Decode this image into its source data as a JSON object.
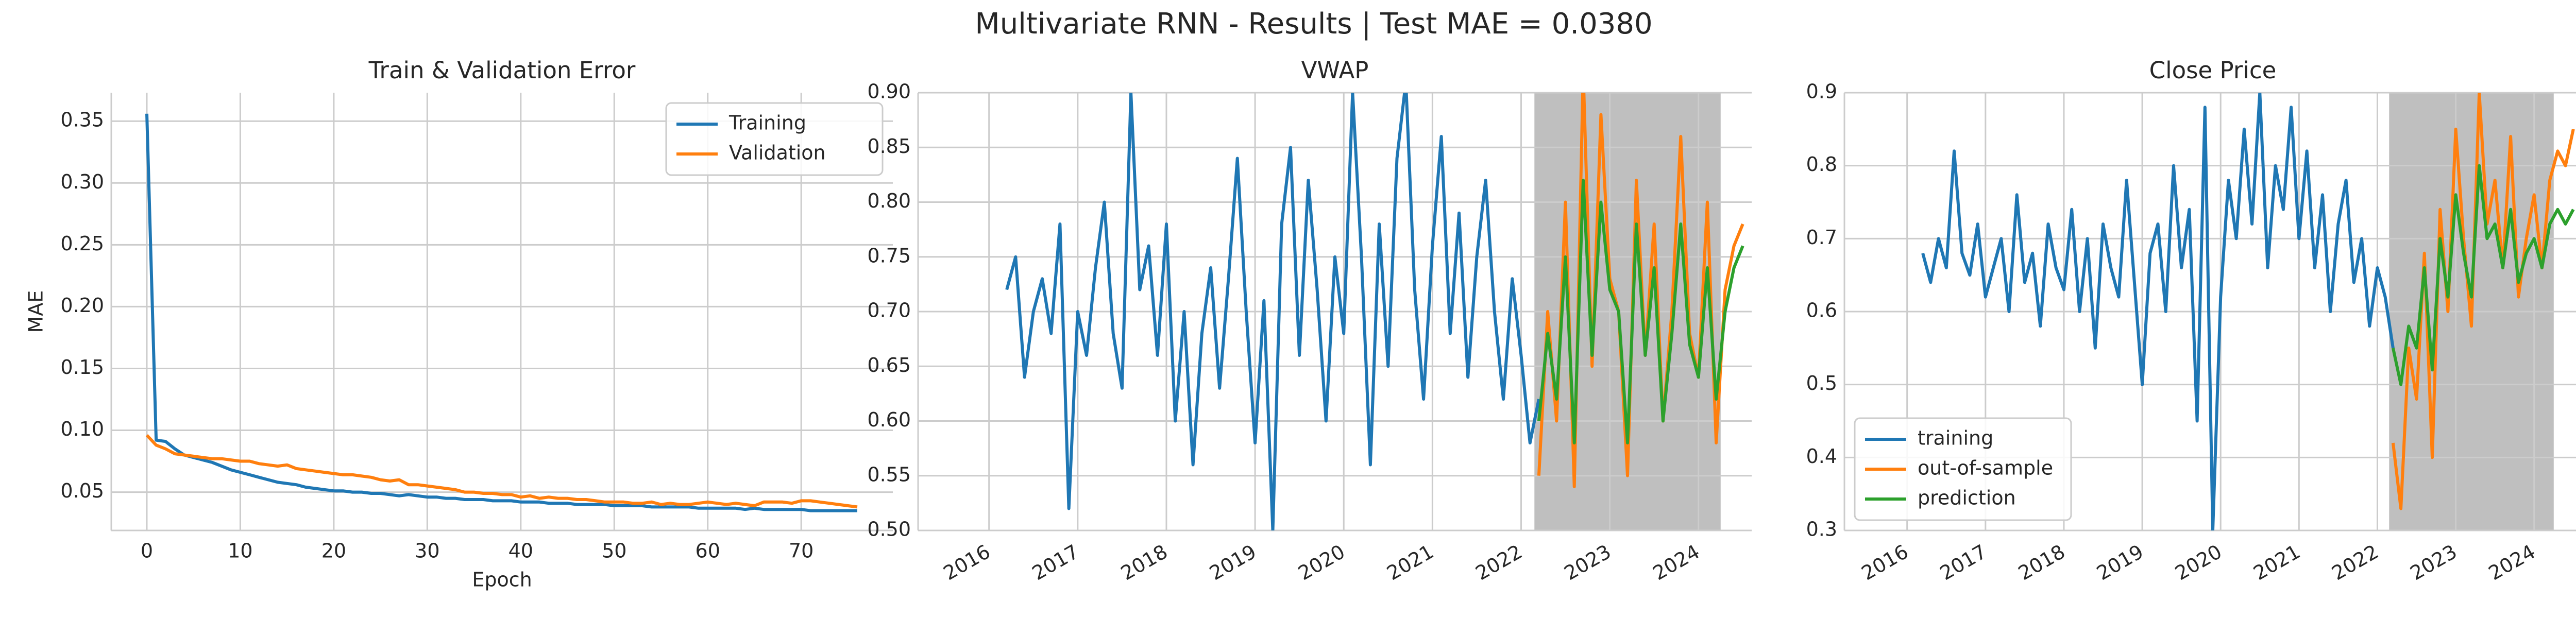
{
  "title": "Multivariate RNN - Results | Test MAE = 0.0380",
  "chart_data": [
    {
      "type": "line",
      "title": "Train & Validation Error",
      "xlabel": "Epoch",
      "ylabel": "MAE",
      "xlim": [
        -3.8,
        79.8
      ],
      "ylim": [
        0.019,
        0.373
      ],
      "xticks": [
        0,
        10,
        20,
        30,
        40,
        50,
        60,
        70
      ],
      "yticks": [
        {
          "value": 0.05,
          "label": "0.05"
        },
        {
          "value": 0.1,
          "label": "0.10"
        },
        {
          "value": 0.15,
          "label": "0.15"
        },
        {
          "value": 0.2,
          "label": "0.20"
        },
        {
          "value": 0.25,
          "label": "0.25"
        },
        {
          "value": 0.3,
          "label": "0.30"
        },
        {
          "value": 0.35,
          "label": "0.35"
        }
      ],
      "grid": true,
      "legend": "upper right",
      "series": [
        {
          "name": "Training",
          "color": "#1f77b4",
          "x": [
            0,
            1,
            2,
            3,
            4,
            5,
            6,
            7,
            8,
            9,
            10,
            11,
            12,
            13,
            14,
            15,
            16,
            17,
            18,
            19,
            20,
            21,
            22,
            23,
            24,
            25,
            26,
            27,
            28,
            29,
            30,
            31,
            32,
            33,
            34,
            35,
            36,
            37,
            38,
            39,
            40,
            41,
            42,
            43,
            44,
            45,
            46,
            47,
            48,
            49,
            50,
            51,
            52,
            53,
            54,
            55,
            56,
            57,
            58,
            59,
            60,
            61,
            62,
            63,
            64,
            65,
            66,
            67,
            68,
            69,
            70,
            71,
            72,
            73,
            74,
            75,
            76
          ],
          "values": [
            0.356,
            0.092,
            0.091,
            0.085,
            0.08,
            0.078,
            0.076,
            0.074,
            0.071,
            0.068,
            0.066,
            0.064,
            0.062,
            0.06,
            0.058,
            0.057,
            0.056,
            0.054,
            0.053,
            0.052,
            0.051,
            0.051,
            0.05,
            0.05,
            0.049,
            0.049,
            0.048,
            0.047,
            0.048,
            0.047,
            0.046,
            0.046,
            0.045,
            0.045,
            0.044,
            0.044,
            0.044,
            0.043,
            0.043,
            0.043,
            0.042,
            0.042,
            0.042,
            0.041,
            0.041,
            0.041,
            0.04,
            0.04,
            0.04,
            0.04,
            0.039,
            0.039,
            0.039,
            0.039,
            0.038,
            0.038,
            0.038,
            0.038,
            0.038,
            0.037,
            0.037,
            0.037,
            0.037,
            0.037,
            0.036,
            0.037,
            0.036,
            0.036,
            0.036,
            0.036,
            0.036,
            0.035,
            0.035,
            0.035,
            0.035,
            0.035,
            0.035
          ]
        },
        {
          "name": "Validation",
          "color": "#ff7f0e",
          "x": [
            0,
            1,
            2,
            3,
            4,
            5,
            6,
            7,
            8,
            9,
            10,
            11,
            12,
            13,
            14,
            15,
            16,
            17,
            18,
            19,
            20,
            21,
            22,
            23,
            24,
            25,
            26,
            27,
            28,
            29,
            30,
            31,
            32,
            33,
            34,
            35,
            36,
            37,
            38,
            39,
            40,
            41,
            42,
            43,
            44,
            45,
            46,
            47,
            48,
            49,
            50,
            51,
            52,
            53,
            54,
            55,
            56,
            57,
            58,
            59,
            60,
            61,
            62,
            63,
            64,
            65,
            66,
            67,
            68,
            69,
            70,
            71,
            72,
            73,
            74,
            75,
            76
          ],
          "values": [
            0.096,
            0.088,
            0.085,
            0.081,
            0.08,
            0.079,
            0.078,
            0.077,
            0.077,
            0.076,
            0.075,
            0.075,
            0.073,
            0.072,
            0.071,
            0.072,
            0.069,
            0.068,
            0.067,
            0.066,
            0.065,
            0.064,
            0.064,
            0.063,
            0.062,
            0.06,
            0.059,
            0.06,
            0.056,
            0.056,
            0.055,
            0.054,
            0.053,
            0.052,
            0.05,
            0.05,
            0.049,
            0.049,
            0.048,
            0.048,
            0.046,
            0.047,
            0.045,
            0.046,
            0.045,
            0.045,
            0.044,
            0.044,
            0.043,
            0.042,
            0.042,
            0.042,
            0.041,
            0.041,
            0.042,
            0.04,
            0.041,
            0.04,
            0.04,
            0.041,
            0.042,
            0.041,
            0.04,
            0.041,
            0.04,
            0.039,
            0.042,
            0.042,
            0.042,
            0.041,
            0.043,
            0.043,
            0.042,
            0.041,
            0.04,
            0.039,
            0.038
          ]
        }
      ]
    },
    {
      "type": "line",
      "title": "VWAP",
      "xlim": [
        2015.2,
        2024.6
      ],
      "ylim": [
        0.5,
        0.9
      ],
      "xticks": [
        2016,
        2017,
        2018,
        2019,
        2020,
        2021,
        2022,
        2023,
        2024
      ],
      "rotate_xticks": true,
      "yticks": [
        {
          "value": 0.5,
          "label": "0.50"
        },
        {
          "value": 0.55,
          "label": "0.55"
        },
        {
          "value": 0.6,
          "label": "0.60"
        },
        {
          "value": 0.65,
          "label": "0.65"
        },
        {
          "value": 0.7,
          "label": "0.70"
        },
        {
          "value": 0.75,
          "label": "0.75"
        },
        {
          "value": 0.8,
          "label": "0.80"
        },
        {
          "value": 0.85,
          "label": "0.85"
        },
        {
          "value": 0.9,
          "label": "0.90"
        }
      ],
      "grid": true,
      "span": [
        2022.15,
        2024.25
      ],
      "span_color": "#bfbfbf",
      "series": [
        {
          "name": "training",
          "color": "#1f77b4",
          "x": [
            2016.2,
            2016.3,
            2016.4,
            2016.5,
            2016.6,
            2016.7,
            2016.8,
            2016.9,
            2017.0,
            2017.1,
            2017.2,
            2017.3,
            2017.4,
            2017.5,
            2017.6,
            2017.7,
            2017.8,
            2017.9,
            2018.0,
            2018.1,
            2018.2,
            2018.3,
            2018.4,
            2018.5,
            2018.6,
            2018.7,
            2018.8,
            2018.9,
            2019.0,
            2019.1,
            2019.2,
            2019.3,
            2019.4,
            2019.5,
            2019.6,
            2019.7,
            2019.8,
            2019.9,
            2020.0,
            2020.1,
            2020.2,
            2020.3,
            2020.4,
            2020.5,
            2020.6,
            2020.7,
            2020.8,
            2020.9,
            2021.0,
            2021.1,
            2021.2,
            2021.3,
            2021.4,
            2021.5,
            2021.6,
            2021.7,
            2021.8,
            2021.9,
            2022.0,
            2022.1,
            2022.2
          ],
          "values": [
            0.72,
            0.75,
            0.64,
            0.7,
            0.73,
            0.68,
            0.78,
            0.52,
            0.7,
            0.66,
            0.74,
            0.8,
            0.68,
            0.63,
            0.9,
            0.72,
            0.76,
            0.66,
            0.78,
            0.6,
            0.7,
            0.56,
            0.68,
            0.74,
            0.63,
            0.73,
            0.84,
            0.7,
            0.58,
            0.71,
            0.5,
            0.78,
            0.85,
            0.66,
            0.82,
            0.72,
            0.6,
            0.75,
            0.68,
            0.9,
            0.75,
            0.56,
            0.78,
            0.65,
            0.84,
            0.91,
            0.72,
            0.62,
            0.76,
            0.86,
            0.68,
            0.79,
            0.64,
            0.75,
            0.82,
            0.7,
            0.62,
            0.73,
            0.66,
            0.58,
            0.62
          ]
        },
        {
          "name": "out-of-sample",
          "color": "#ff7f0e",
          "x": [
            2022.2,
            2022.3,
            2022.4,
            2022.5,
            2022.6,
            2022.7,
            2022.8,
            2022.9,
            2023.0,
            2023.1,
            2023.2,
            2023.3,
            2023.4,
            2023.5,
            2023.6,
            2023.7,
            2023.8,
            2023.9,
            2024.0,
            2024.1,
            2024.2,
            2024.3,
            2024.4,
            2024.5
          ],
          "values": [
            0.55,
            0.7,
            0.6,
            0.8,
            0.54,
            0.92,
            0.65,
            0.88,
            0.73,
            0.7,
            0.55,
            0.82,
            0.66,
            0.78,
            0.6,
            0.7,
            0.86,
            0.68,
            0.64,
            0.8,
            0.58,
            0.72,
            0.76,
            0.78
          ]
        },
        {
          "name": "prediction",
          "color": "#2ca02c",
          "x": [
            2022.2,
            2022.3,
            2022.4,
            2022.5,
            2022.6,
            2022.7,
            2022.8,
            2022.9,
            2023.0,
            2023.1,
            2023.2,
            2023.3,
            2023.4,
            2023.5,
            2023.6,
            2023.7,
            2023.8,
            2023.9,
            2024.0,
            2024.1,
            2024.2,
            2024.3,
            2024.4,
            2024.5
          ],
          "values": [
            0.6,
            0.68,
            0.62,
            0.75,
            0.58,
            0.82,
            0.66,
            0.8,
            0.72,
            0.7,
            0.58,
            0.78,
            0.66,
            0.74,
            0.6,
            0.68,
            0.78,
            0.67,
            0.64,
            0.74,
            0.62,
            0.7,
            0.74,
            0.76
          ]
        }
      ]
    },
    {
      "type": "line",
      "title": "Close Price",
      "xlim": [
        2015.2,
        2024.6
      ],
      "ylim": [
        0.3,
        0.9
      ],
      "xticks": [
        2016,
        2017,
        2018,
        2019,
        2020,
        2021,
        2022,
        2023,
        2024
      ],
      "rotate_xticks": true,
      "yticks": [
        0.3,
        0.4,
        0.5,
        0.6,
        0.7,
        0.8,
        0.9
      ],
      "grid": true,
      "legend": "lower left",
      "span": [
        2022.15,
        2024.25
      ],
      "span_color": "#bfbfbf",
      "series": [
        {
          "name": "training",
          "color": "#1f77b4",
          "x": [
            2016.2,
            2016.3,
            2016.4,
            2016.5,
            2016.6,
            2016.7,
            2016.8,
            2016.9,
            2017.0,
            2017.1,
            2017.2,
            2017.3,
            2017.4,
            2017.5,
            2017.6,
            2017.7,
            2017.8,
            2017.9,
            2018.0,
            2018.1,
            2018.2,
            2018.3,
            2018.4,
            2018.5,
            2018.6,
            2018.7,
            2018.8,
            2018.9,
            2019.0,
            2019.1,
            2019.2,
            2019.3,
            2019.4,
            2019.5,
            2019.6,
            2019.7,
            2019.8,
            2019.9,
            2020.0,
            2020.1,
            2020.2,
            2020.3,
            2020.4,
            2020.5,
            2020.6,
            2020.7,
            2020.8,
            2020.9,
            2021.0,
            2021.1,
            2021.2,
            2021.3,
            2021.4,
            2021.5,
            2021.6,
            2021.7,
            2021.8,
            2021.9,
            2022.0,
            2022.1,
            2022.2
          ],
          "values": [
            0.68,
            0.64,
            0.7,
            0.66,
            0.82,
            0.68,
            0.65,
            0.72,
            0.62,
            0.66,
            0.7,
            0.6,
            0.76,
            0.64,
            0.68,
            0.58,
            0.72,
            0.66,
            0.63,
            0.74,
            0.6,
            0.7,
            0.55,
            0.72,
            0.66,
            0.62,
            0.78,
            0.64,
            0.5,
            0.68,
            0.72,
            0.6,
            0.8,
            0.66,
            0.74,
            0.45,
            0.88,
            0.3,
            0.62,
            0.78,
            0.7,
            0.85,
            0.72,
            0.9,
            0.66,
            0.8,
            0.74,
            0.88,
            0.7,
            0.82,
            0.66,
            0.76,
            0.6,
            0.72,
            0.78,
            0.64,
            0.7,
            0.58,
            0.66,
            0.62,
            0.55
          ]
        },
        {
          "name": "out-of-sample",
          "color": "#ff7f0e",
          "x": [
            2022.2,
            2022.3,
            2022.4,
            2022.5,
            2022.6,
            2022.7,
            2022.8,
            2022.9,
            2023.0,
            2023.1,
            2023.2,
            2023.3,
            2023.4,
            2023.5,
            2023.6,
            2023.7,
            2023.8,
            2023.9,
            2024.0,
            2024.1,
            2024.2,
            2024.3,
            2024.4,
            2024.5
          ],
          "values": [
            0.42,
            0.33,
            0.55,
            0.48,
            0.68,
            0.4,
            0.74,
            0.6,
            0.85,
            0.7,
            0.58,
            0.9,
            0.72,
            0.78,
            0.66,
            0.84,
            0.62,
            0.7,
            0.76,
            0.66,
            0.78,
            0.82,
            0.8,
            0.85
          ]
        },
        {
          "name": "prediction",
          "color": "#2ca02c",
          "x": [
            2022.2,
            2022.3,
            2022.4,
            2022.5,
            2022.6,
            2022.7,
            2022.8,
            2022.9,
            2023.0,
            2023.1,
            2023.2,
            2023.3,
            2023.4,
            2023.5,
            2023.6,
            2023.7,
            2023.8,
            2023.9,
            2024.0,
            2024.1,
            2024.2,
            2024.3,
            2024.4,
            2024.5
          ],
          "values": [
            0.55,
            0.5,
            0.58,
            0.55,
            0.66,
            0.52,
            0.7,
            0.62,
            0.76,
            0.68,
            0.62,
            0.8,
            0.7,
            0.72,
            0.66,
            0.74,
            0.64,
            0.68,
            0.7,
            0.66,
            0.72,
            0.74,
            0.72,
            0.74
          ]
        }
      ]
    }
  ]
}
